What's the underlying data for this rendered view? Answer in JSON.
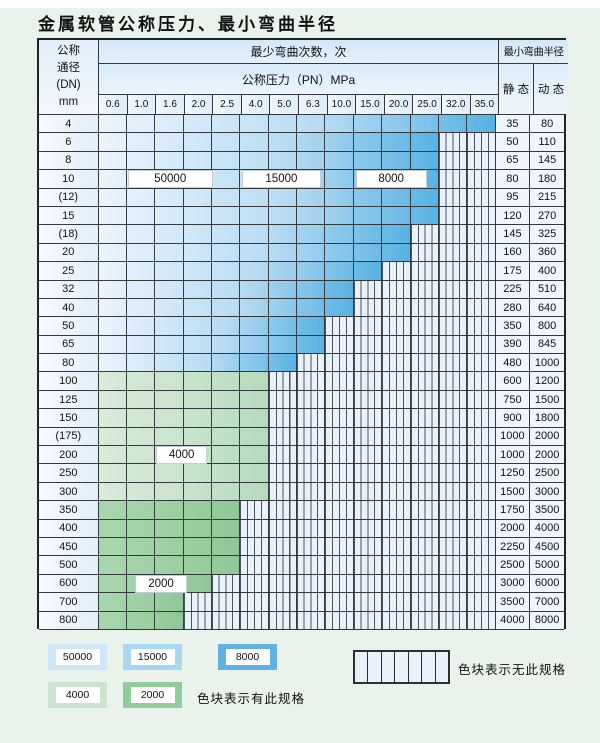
{
  "title": "金属软管公称压力、最小弯曲半径",
  "table": {
    "corner_lines": [
      "公称",
      "通径",
      "(DN)",
      "mm"
    ],
    "bend_header": "最少弯曲次数，次",
    "pressure_header": "公称压力（PN）MPa",
    "radius_header": "最小弯曲半径",
    "static_label": "静 态",
    "dynamic_label": "动 态",
    "pressure_columns": [
      "0.6",
      "1.0",
      "1.6",
      "2.0",
      "2.5",
      "4.0",
      "5.0",
      "6.3",
      "10.0",
      "15.0",
      "20.0",
      "25.0",
      "32.0",
      "35.0"
    ],
    "rows": [
      {
        "dn": "4",
        "static": "35",
        "dynamic": "80",
        "colored_span": 14,
        "zone": "blue"
      },
      {
        "dn": "6",
        "static": "50",
        "dynamic": "110",
        "colored_span": 12,
        "zone": "blue"
      },
      {
        "dn": "8",
        "static": "65",
        "dynamic": "145",
        "colored_span": 12,
        "zone": "blue"
      },
      {
        "dn": "10",
        "static": "80",
        "dynamic": "180",
        "colored_span": 12,
        "zone": "blue"
      },
      {
        "dn": "(12)",
        "static": "95",
        "dynamic": "215",
        "colored_span": 12,
        "zone": "blue"
      },
      {
        "dn": "15",
        "static": "120",
        "dynamic": "270",
        "colored_span": 12,
        "zone": "blue"
      },
      {
        "dn": "(18)",
        "static": "145",
        "dynamic": "325",
        "colored_span": 11,
        "zone": "blue"
      },
      {
        "dn": "20",
        "static": "160",
        "dynamic": "360",
        "colored_span": 11,
        "zone": "blue"
      },
      {
        "dn": "25",
        "static": "175",
        "dynamic": "400",
        "colored_span": 10,
        "zone": "blue"
      },
      {
        "dn": "32",
        "static": "225",
        "dynamic": "510",
        "colored_span": 9,
        "zone": "blue"
      },
      {
        "dn": "40",
        "static": "280",
        "dynamic": "640",
        "colored_span": 9,
        "zone": "blue"
      },
      {
        "dn": "50",
        "static": "350",
        "dynamic": "800",
        "colored_span": 8,
        "zone": "blue"
      },
      {
        "dn": "65",
        "static": "390",
        "dynamic": "845",
        "colored_span": 8,
        "zone": "blue"
      },
      {
        "dn": "80",
        "static": "480",
        "dynamic": "1000",
        "colored_span": 7,
        "zone": "blue"
      },
      {
        "dn": "100",
        "static": "600",
        "dynamic": "1200",
        "colored_span": 6,
        "zone": "green_light"
      },
      {
        "dn": "125",
        "static": "750",
        "dynamic": "1500",
        "colored_span": 6,
        "zone": "green_light"
      },
      {
        "dn": "150",
        "static": "900",
        "dynamic": "1800",
        "colored_span": 6,
        "zone": "green_light"
      },
      {
        "dn": "(175)",
        "static": "1000",
        "dynamic": "2000",
        "colored_span": 6,
        "zone": "green_light"
      },
      {
        "dn": "200",
        "static": "1000",
        "dynamic": "2000",
        "colored_span": 6,
        "zone": "green_light"
      },
      {
        "dn": "250",
        "static": "1250",
        "dynamic": "2500",
        "colored_span": 6,
        "zone": "green_light"
      },
      {
        "dn": "300",
        "static": "1500",
        "dynamic": "3000",
        "colored_span": 6,
        "zone": "green_light"
      },
      {
        "dn": "350",
        "static": "1750",
        "dynamic": "3500",
        "colored_span": 5,
        "zone": "green_dark"
      },
      {
        "dn": "400",
        "static": "2000",
        "dynamic": "4000",
        "colored_span": 5,
        "zone": "green_dark"
      },
      {
        "dn": "450",
        "static": "2250",
        "dynamic": "4500",
        "colored_span": 5,
        "zone": "green_dark"
      },
      {
        "dn": "500",
        "static": "2500",
        "dynamic": "5000",
        "colored_span": 5,
        "zone": "green_dark"
      },
      {
        "dn": "600",
        "static": "3000",
        "dynamic": "6000",
        "colored_span": 4,
        "zone": "green_dark"
      },
      {
        "dn": "700",
        "static": "3500",
        "dynamic": "7000",
        "colored_span": 3,
        "zone": "green_dark"
      },
      {
        "dn": "800",
        "static": "4000",
        "dynamic": "8000",
        "colored_span": 3,
        "zone": "green_dark"
      }
    ]
  },
  "zone_labels": [
    {
      "text": "50000",
      "row_dn": "10",
      "col_start": 1,
      "col_span": 3
    },
    {
      "text": "15000",
      "row_dn": "10",
      "col_start": 5,
      "col_span": 2.8
    },
    {
      "text": "8000",
      "row_dn": "10",
      "col_start": 9,
      "col_span": 2.5
    },
    {
      "text": "4000",
      "row_dn": "200",
      "col_start": 2,
      "col_span": 1.8
    },
    {
      "text": "2000",
      "row_dn": "600",
      "col_start": 1.25,
      "col_span": 1.85
    }
  ],
  "legend": {
    "items": [
      {
        "label": "50000",
        "color": "#cfe6f8"
      },
      {
        "label": "15000",
        "color": "#a9d6f1"
      },
      {
        "label": "8000",
        "color": "#5fb2e2"
      },
      {
        "label": "4000",
        "color": "#cbe4cf"
      },
      {
        "label": "2000",
        "color": "#92cb9c"
      }
    ],
    "has_note": "色块表示有此规格",
    "none_note": "色块表示无此规格"
  },
  "colors": {
    "zones": {
      "blue": {
        "stops": [
          "#eaf4fd",
          "#b9dcf3",
          "#58b2e3"
        ]
      },
      "green_light": {
        "stops": [
          "#d8ecd9",
          "#c8e3cb",
          "#b5dabb"
        ]
      },
      "green_dark": {
        "stops": [
          "#a9d6ae",
          "#9cd0a3",
          "#8ec797"
        ]
      }
    },
    "hatch_fill": "#e9f2fa",
    "hatch_line": "#4c545c"
  }
}
